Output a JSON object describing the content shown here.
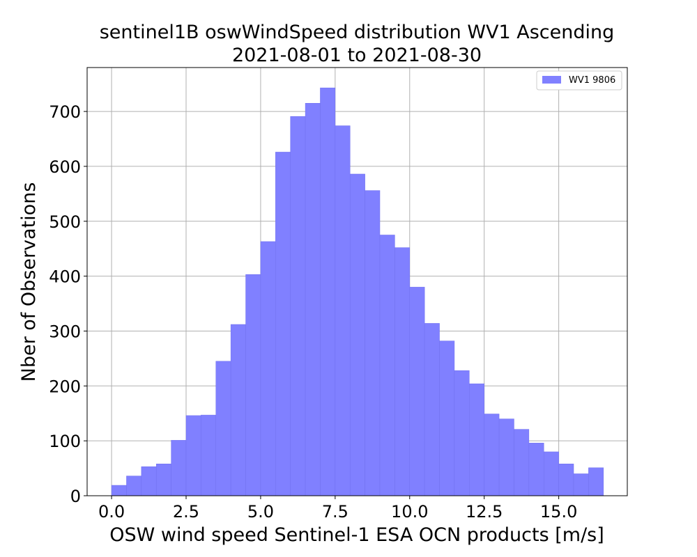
{
  "chart_data": {
    "type": "bar",
    "title": [
      "sentinel1B oswWindSpeed distribution WV1 Ascending",
      "2021-08-01 to 2021-08-30"
    ],
    "xlabel": "OSW wind speed Sentinel-1 ESA OCN products [m/s]",
    "ylabel": "Nber of Observations",
    "xlim": [
      -0.82,
      17.3
    ],
    "ylim": [
      0,
      780
    ],
    "xticks": [
      0.0,
      2.5,
      5.0,
      7.5,
      10.0,
      12.5,
      15.0
    ],
    "xtick_labels": [
      "0.0",
      "2.5",
      "5.0",
      "7.5",
      "10.0",
      "12.5",
      "15.0"
    ],
    "yticks": [
      0,
      100,
      200,
      300,
      400,
      500,
      600,
      700
    ],
    "ytick_labels": [
      "0",
      "100",
      "200",
      "300",
      "400",
      "500",
      "600",
      "700"
    ],
    "grid": true,
    "legend_position": "top-right",
    "bin_start": 0.0,
    "bin_width": 0.5,
    "series": [
      {
        "name": "WV1 9806",
        "color": "#8080ff",
        "edge_color": "#7070ee",
        "values": [
          19,
          36,
          53,
          58,
          101,
          146,
          147,
          245,
          312,
          403,
          463,
          626,
          691,
          715,
          743,
          674,
          586,
          556,
          475,
          452,
          380,
          314,
          282,
          228,
          204,
          149,
          140,
          121,
          96,
          80,
          58,
          40,
          51
        ]
      }
    ]
  }
}
